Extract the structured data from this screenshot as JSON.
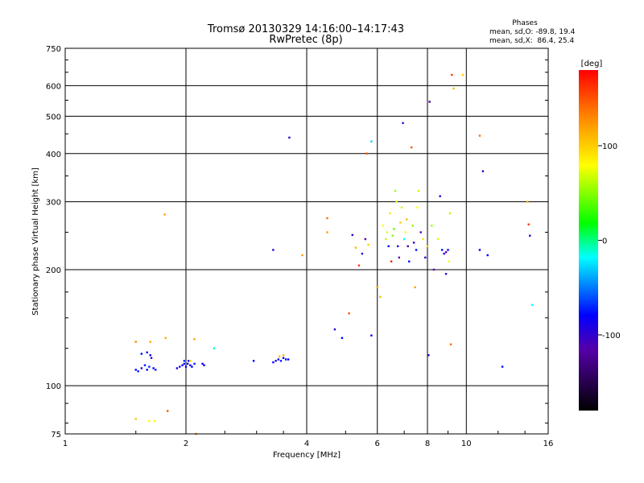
{
  "chart_data": {
    "type": "scatter",
    "title": "Tromsø 20130329 14:16:00–14:17:43",
    "subtitle": "RwPretec (8p)",
    "xlabel": "Frequency [MHz]",
    "ylabel": "Stationary phase Virtual Height [km]",
    "x_scale": "log",
    "y_scale": "log",
    "xlim": [
      1,
      16
    ],
    "ylim": [
      75,
      750
    ],
    "x_ticks": [
      1,
      2,
      4,
      6,
      8,
      10,
      16
    ],
    "x_tick_labels": [
      "1",
      "2",
      "4",
      "6",
      "8",
      "10",
      "16"
    ],
    "y_ticks": [
      75,
      100,
      200,
      300,
      400,
      500,
      600,
      750
    ],
    "y_tick_labels": [
      "75",
      "100",
      "200",
      "300",
      "400",
      "500",
      "600",
      "750"
    ],
    "grid": true,
    "stats": {
      "header": "Phases",
      "line_o": "mean, sd,O: -89.8, 19.4",
      "line_x": "mean, sd,X:  86.4, 25.4"
    },
    "colorbar": {
      "label": "[deg]",
      "range": [
        -180,
        180
      ],
      "ticks": [
        100,
        0,
        -100
      ],
      "tick_labels": [
        "100",
        "0",
        "-100"
      ]
    },
    "points": [
      {
        "x": 1.5,
        "y": 110,
        "phase": -100
      },
      {
        "x": 1.52,
        "y": 109,
        "phase": -95
      },
      {
        "x": 1.55,
        "y": 111,
        "phase": -110
      },
      {
        "x": 1.6,
        "y": 110,
        "phase": -100
      },
      {
        "x": 1.62,
        "y": 112,
        "phase": -90
      },
      {
        "x": 1.58,
        "y": 113,
        "phase": -95
      },
      {
        "x": 1.63,
        "y": 120,
        "phase": -100
      },
      {
        "x": 1.64,
        "y": 118,
        "phase": -110
      },
      {
        "x": 1.55,
        "y": 121,
        "phase": -100
      },
      {
        "x": 1.66,
        "y": 111,
        "phase": -100
      },
      {
        "x": 1.68,
        "y": 110,
        "phase": -95
      },
      {
        "x": 1.6,
        "y": 122,
        "phase": -100
      },
      {
        "x": 1.5,
        "y": 130,
        "phase": 130
      },
      {
        "x": 1.63,
        "y": 130,
        "phase": 120
      },
      {
        "x": 1.78,
        "y": 133,
        "phase": 115
      },
      {
        "x": 1.5,
        "y": 82,
        "phase": 105
      },
      {
        "x": 1.62,
        "y": 81,
        "phase": 80
      },
      {
        "x": 1.67,
        "y": 81,
        "phase": 80
      },
      {
        "x": 1.8,
        "y": 86,
        "phase": 150
      },
      {
        "x": 1.77,
        "y": 278,
        "phase": 120
      },
      {
        "x": 1.9,
        "y": 111,
        "phase": -100
      },
      {
        "x": 1.93,
        "y": 112,
        "phase": -105
      },
      {
        "x": 1.96,
        "y": 113,
        "phase": -100
      },
      {
        "x": 1.98,
        "y": 114,
        "phase": -95
      },
      {
        "x": 2.0,
        "y": 112,
        "phase": -100
      },
      {
        "x": 2.02,
        "y": 114,
        "phase": -110
      },
      {
        "x": 2.05,
        "y": 113,
        "phase": -100
      },
      {
        "x": 2.07,
        "y": 112,
        "phase": -100
      },
      {
        "x": 2.1,
        "y": 114,
        "phase": -95
      },
      {
        "x": 1.98,
        "y": 116,
        "phase": -90
      },
      {
        "x": 2.03,
        "y": 116,
        "phase": -100
      },
      {
        "x": 2.2,
        "y": 114,
        "phase": -100
      },
      {
        "x": 2.22,
        "y": 113,
        "phase": -100
      },
      {
        "x": 2.35,
        "y": 125,
        "phase": -30
      },
      {
        "x": 2.1,
        "y": 132,
        "phase": 120
      },
      {
        "x": 2.05,
        "y": 116,
        "phase": 100
      },
      {
        "x": 2.12,
        "y": 75,
        "phase": 130
      },
      {
        "x": 2.95,
        "y": 116,
        "phase": -100
      },
      {
        "x": 3.3,
        "y": 115,
        "phase": -100
      },
      {
        "x": 3.35,
        "y": 116,
        "phase": -110
      },
      {
        "x": 3.4,
        "y": 117,
        "phase": -100
      },
      {
        "x": 3.45,
        "y": 116,
        "phase": -95
      },
      {
        "x": 3.5,
        "y": 118,
        "phase": -100
      },
      {
        "x": 3.55,
        "y": 117,
        "phase": -100
      },
      {
        "x": 3.6,
        "y": 117,
        "phase": -100
      },
      {
        "x": 3.42,
        "y": 119,
        "phase": 110
      },
      {
        "x": 3.5,
        "y": 120,
        "phase": 110
      },
      {
        "x": 3.62,
        "y": 440,
        "phase": -110
      },
      {
        "x": 3.3,
        "y": 225,
        "phase": -110
      },
      {
        "x": 3.9,
        "y": 218,
        "phase": 120
      },
      {
        "x": 4.5,
        "y": 272,
        "phase": 140
      },
      {
        "x": 4.5,
        "y": 250,
        "phase": 120
      },
      {
        "x": 4.7,
        "y": 140,
        "phase": -110
      },
      {
        "x": 4.9,
        "y": 133,
        "phase": -100
      },
      {
        "x": 5.1,
        "y": 154,
        "phase": 150
      },
      {
        "x": 5.2,
        "y": 246,
        "phase": -110
      },
      {
        "x": 5.3,
        "y": 228,
        "phase": 110
      },
      {
        "x": 5.4,
        "y": 205,
        "phase": 160
      },
      {
        "x": 5.5,
        "y": 220,
        "phase": -110
      },
      {
        "x": 5.6,
        "y": 240,
        "phase": -120
      },
      {
        "x": 5.7,
        "y": 232,
        "phase": 100
      },
      {
        "x": 5.8,
        "y": 135,
        "phase": -100
      },
      {
        "x": 5.65,
        "y": 400,
        "phase": 150
      },
      {
        "x": 5.8,
        "y": 430,
        "phase": -50
      },
      {
        "x": 6.0,
        "y": 180,
        "phase": 120
      },
      {
        "x": 6.1,
        "y": 170,
        "phase": 110
      },
      {
        "x": 6.2,
        "y": 260,
        "phase": 80
      },
      {
        "x": 6.3,
        "y": 240,
        "phase": 60
      },
      {
        "x": 6.35,
        "y": 250,
        "phase": 70
      },
      {
        "x": 6.4,
        "y": 230,
        "phase": -100
      },
      {
        "x": 6.45,
        "y": 280,
        "phase": 90
      },
      {
        "x": 6.5,
        "y": 210,
        "phase": 170
      },
      {
        "x": 6.55,
        "y": 245,
        "phase": 40
      },
      {
        "x": 6.6,
        "y": 255,
        "phase": 30
      },
      {
        "x": 6.65,
        "y": 320,
        "phase": 50
      },
      {
        "x": 6.7,
        "y": 300,
        "phase": 70
      },
      {
        "x": 6.75,
        "y": 230,
        "phase": -110
      },
      {
        "x": 6.8,
        "y": 215,
        "phase": -120
      },
      {
        "x": 6.85,
        "y": 265,
        "phase": 100
      },
      {
        "x": 6.9,
        "y": 290,
        "phase": 60
      },
      {
        "x": 6.95,
        "y": 480,
        "phase": -110
      },
      {
        "x": 7.0,
        "y": 240,
        "phase": -40
      },
      {
        "x": 7.05,
        "y": 250,
        "phase": 80
      },
      {
        "x": 7.1,
        "y": 270,
        "phase": 110
      },
      {
        "x": 7.15,
        "y": 230,
        "phase": -130
      },
      {
        "x": 7.2,
        "y": 210,
        "phase": -100
      },
      {
        "x": 7.3,
        "y": 415,
        "phase": 150
      },
      {
        "x": 7.35,
        "y": 260,
        "phase": 40
      },
      {
        "x": 7.4,
        "y": 235,
        "phase": -110
      },
      {
        "x": 7.45,
        "y": 180,
        "phase": 120
      },
      {
        "x": 7.5,
        "y": 225,
        "phase": -100
      },
      {
        "x": 7.55,
        "y": 290,
        "phase": 80
      },
      {
        "x": 7.6,
        "y": 320,
        "phase": 60
      },
      {
        "x": 7.7,
        "y": 250,
        "phase": -120
      },
      {
        "x": 7.8,
        "y": 240,
        "phase": 90
      },
      {
        "x": 7.9,
        "y": 215,
        "phase": -110
      },
      {
        "x": 8.0,
        "y": 230,
        "phase": 100
      },
      {
        "x": 8.05,
        "y": 120,
        "phase": -110
      },
      {
        "x": 8.1,
        "y": 545,
        "phase": -130
      },
      {
        "x": 8.2,
        "y": 260,
        "phase": 50
      },
      {
        "x": 8.3,
        "y": 200,
        "phase": -120
      },
      {
        "x": 8.5,
        "y": 240,
        "phase": 70
      },
      {
        "x": 8.6,
        "y": 310,
        "phase": -110
      },
      {
        "x": 8.7,
        "y": 225,
        "phase": -100
      },
      {
        "x": 8.8,
        "y": 220,
        "phase": -110
      },
      {
        "x": 8.9,
        "y": 222,
        "phase": -120
      },
      {
        "x": 9.0,
        "y": 225,
        "phase": -100
      },
      {
        "x": 9.1,
        "y": 280,
        "phase": 60
      },
      {
        "x": 9.2,
        "y": 640,
        "phase": 160
      },
      {
        "x": 9.3,
        "y": 590,
        "phase": 110
      },
      {
        "x": 9.15,
        "y": 128,
        "phase": 140
      },
      {
        "x": 8.9,
        "y": 195,
        "phase": -110
      },
      {
        "x": 9.05,
        "y": 210,
        "phase": 80
      },
      {
        "x": 9.8,
        "y": 640,
        "phase": 100
      },
      {
        "x": 10.8,
        "y": 445,
        "phase": 140
      },
      {
        "x": 11.0,
        "y": 360,
        "phase": -110
      },
      {
        "x": 10.8,
        "y": 225,
        "phase": -100
      },
      {
        "x": 11.3,
        "y": 218,
        "phase": -100
      },
      {
        "x": 12.3,
        "y": 112,
        "phase": -100
      },
      {
        "x": 14.2,
        "y": 300,
        "phase": 110
      },
      {
        "x": 14.3,
        "y": 262,
        "phase": 160
      },
      {
        "x": 14.4,
        "y": 245,
        "phase": -110
      },
      {
        "x": 14.6,
        "y": 162,
        "phase": -40
      }
    ]
  }
}
